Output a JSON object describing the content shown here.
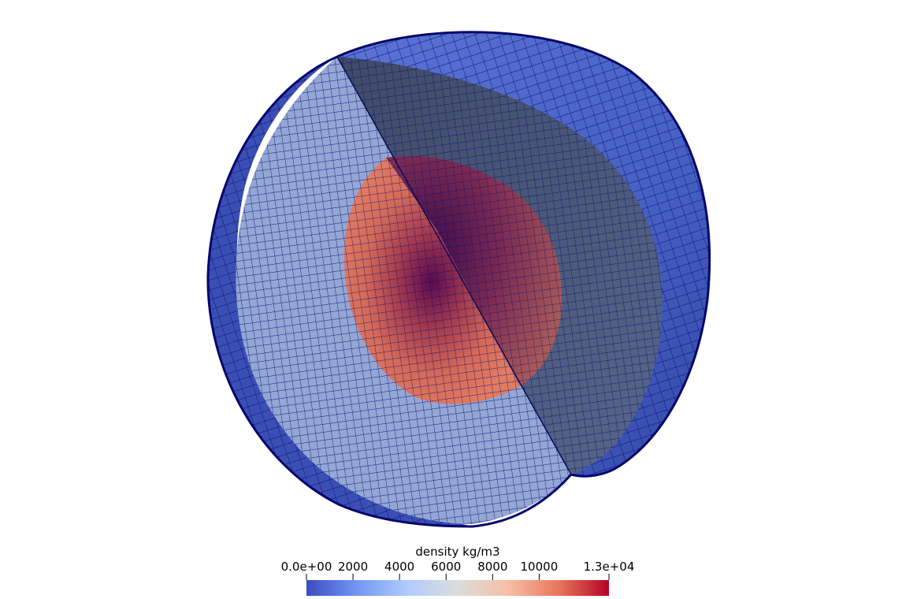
{
  "scene": {
    "mesh_color": "#0a0a6e",
    "shell_color": "#4a63c6",
    "section_color": "#8fa4d6",
    "inner_face_color": "#4c5a78",
    "core_color": "#d86a55",
    "core_center_color": "#6a1248"
  },
  "colorbar": {
    "title": "density kg/m3",
    "min": 0,
    "max": 13000,
    "ticks": [
      {
        "value": 0,
        "label": "0.0e+00"
      },
      {
        "value": 2000,
        "label": "2000"
      },
      {
        "value": 4000,
        "label": "4000"
      },
      {
        "value": 6000,
        "label": "6000"
      },
      {
        "value": 8000,
        "label": "8000"
      },
      {
        "value": 10000,
        "label": "10000"
      },
      {
        "value": 13000,
        "label": "1.3e+04"
      }
    ],
    "colormap": [
      "#3b4cc0",
      "#7396f5",
      "#b0cbfc",
      "#dcdddd",
      "#f6bfa6",
      "#e8765c",
      "#b40426"
    ]
  }
}
